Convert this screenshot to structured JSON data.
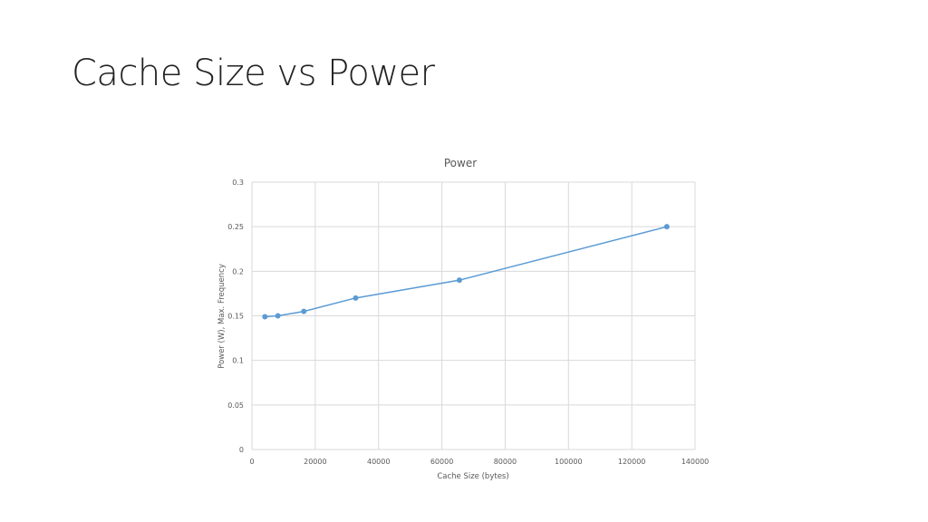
{
  "slide": {
    "title": "Cache Size vs Power"
  },
  "chart_data": {
    "type": "line",
    "title": "Power",
    "xlabel": "Cache Size (bytes)",
    "ylabel": "Power (W), Max. Frequency",
    "xlim": [
      0,
      140000
    ],
    "ylim": [
      0,
      0.3
    ],
    "xticks": [
      0,
      20000,
      40000,
      60000,
      80000,
      100000,
      120000,
      140000
    ],
    "yticks": [
      0,
      0.05,
      0.1,
      0.15,
      0.2,
      0.25,
      0.3
    ],
    "grid": true,
    "color": "#5B9BD5",
    "series": [
      {
        "name": "Power",
        "x": [
          4096,
          8192,
          16384,
          32768,
          65536,
          131072
        ],
        "y": [
          0.149,
          0.15,
          0.155,
          0.17,
          0.19,
          0.25
        ]
      }
    ]
  }
}
